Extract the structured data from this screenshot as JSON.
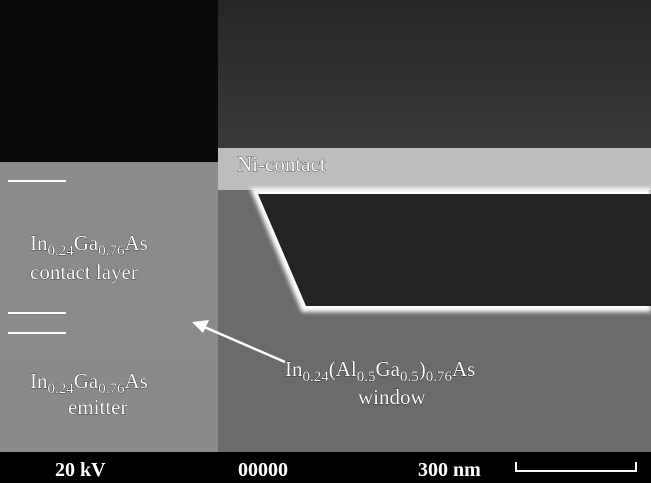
{
  "labels": {
    "ni_contact": "Ni-contact",
    "contact_layer": {
      "formula": [
        {
          "t": "In"
        },
        {
          "sub": "0.24"
        },
        {
          "t": "Ga"
        },
        {
          "sub": "0.76"
        },
        {
          "t": "As"
        }
      ],
      "text": "contact layer"
    },
    "emitter": {
      "formula": [
        {
          "t": "In"
        },
        {
          "sub": "0.24"
        },
        {
          "t": "Ga"
        },
        {
          "sub": "0.76"
        },
        {
          "t": "As"
        }
      ],
      "text": "emitter"
    },
    "window": {
      "formula": [
        {
          "t": "In"
        },
        {
          "sub": "0.24"
        },
        {
          "t": "(Al"
        },
        {
          "sub": "0.5"
        },
        {
          "t": "Ga"
        },
        {
          "sub": "0.5"
        },
        {
          "t": ")"
        },
        {
          "sub": "0.76"
        },
        {
          "t": "As"
        }
      ],
      "text": "window"
    }
  },
  "info_bar": {
    "voltage": "20 kV",
    "id": "00000",
    "scale": "300 nm"
  }
}
